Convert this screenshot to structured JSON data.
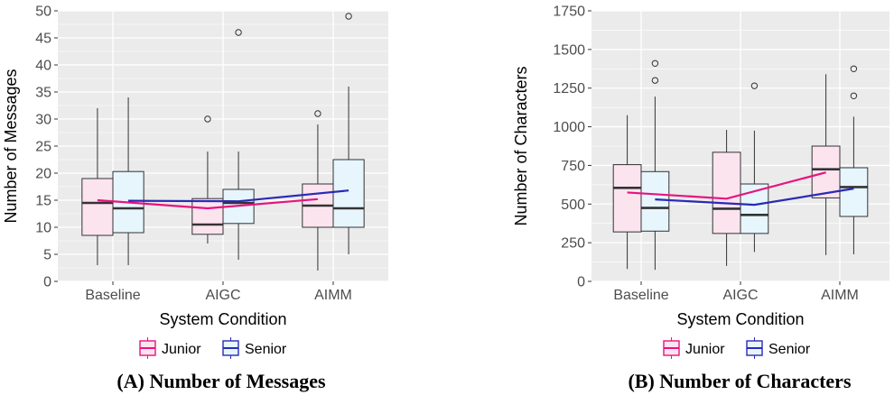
{
  "colors": {
    "junior_fill": "#fce4ef",
    "senior_fill": "#e6f6fc",
    "junior_line": "#e8137f",
    "senior_line": "#2a2ab5",
    "panel_bg": "#ebebeb",
    "grid": "#ffffff",
    "box_stroke": "#333333"
  },
  "legend": {
    "junior_label": "Junior",
    "senior_label": "Senior"
  },
  "chart_data": [
    {
      "type": "box",
      "caption": "(A) Number of Messages",
      "xlabel": "System Condition",
      "ylabel": "Number of Messages",
      "ylim": [
        0,
        50
      ],
      "yticks": [
        0,
        5,
        10,
        15,
        20,
        25,
        30,
        35,
        40,
        45,
        50
      ],
      "grid": true,
      "legend_position": "bottom",
      "categories": [
        "Baseline",
        "AIGC",
        "AIMM"
      ],
      "series": [
        {
          "name": "Junior",
          "boxes": [
            {
              "whisker_low": 3,
              "q1": 8.5,
              "median": 14.5,
              "q3": 19,
              "whisker_high": 32,
              "outliers": []
            },
            {
              "whisker_low": 7,
              "q1": 8.7,
              "median": 10.5,
              "q3": 15.3,
              "whisker_high": 24,
              "outliers": [
                30
              ]
            },
            {
              "whisker_low": 2,
              "q1": 10,
              "median": 14,
              "q3": 18,
              "whisker_high": 29,
              "outliers": [
                31
              ]
            }
          ],
          "means": [
            15,
            13.5,
            15.2
          ]
        },
        {
          "name": "Senior",
          "boxes": [
            {
              "whisker_low": 3,
              "q1": 9,
              "median": 13.5,
              "q3": 20.3,
              "whisker_high": 34,
              "outliers": []
            },
            {
              "whisker_low": 4,
              "q1": 10.7,
              "median": 14.5,
              "q3": 17,
              "whisker_high": 24,
              "outliers": [
                46
              ]
            },
            {
              "whisker_low": 5,
              "q1": 10,
              "median": 13.5,
              "q3": 22.5,
              "whisker_high": 36,
              "outliers": [
                49
              ]
            }
          ],
          "means": [
            14.9,
            14.8,
            16.8
          ]
        }
      ]
    },
    {
      "type": "box",
      "caption": "(B) Number of Characters",
      "xlabel": "System Condition",
      "ylabel": "Number of Characters",
      "ylim": [
        0,
        1750
      ],
      "yticks": [
        0,
        250,
        500,
        750,
        1000,
        1250,
        1500,
        1750
      ],
      "grid": true,
      "legend_position": "bottom",
      "categories": [
        "Baseline",
        "AIGC",
        "AIMM"
      ],
      "series": [
        {
          "name": "Junior",
          "boxes": [
            {
              "whisker_low": 80,
              "q1": 320,
              "median": 605,
              "q3": 755,
              "whisker_high": 1075,
              "outliers": []
            },
            {
              "whisker_low": 100,
              "q1": 310,
              "median": 470,
              "q3": 835,
              "whisker_high": 980,
              "outliers": []
            },
            {
              "whisker_low": 170,
              "q1": 540,
              "median": 725,
              "q3": 875,
              "whisker_high": 1340,
              "outliers": []
            }
          ],
          "means": [
            575,
            535,
            705
          ]
        },
        {
          "name": "Senior",
          "boxes": [
            {
              "whisker_low": 75,
              "q1": 325,
              "median": 475,
              "q3": 710,
              "whisker_high": 1195,
              "outliers": [
                1300,
                1410
              ]
            },
            {
              "whisker_low": 190,
              "q1": 310,
              "median": 430,
              "q3": 630,
              "whisker_high": 975,
              "outliers": [
                1265
              ]
            },
            {
              "whisker_low": 175,
              "q1": 420,
              "median": 610,
              "q3": 735,
              "whisker_high": 1065,
              "outliers": [
                1200,
                1375
              ]
            }
          ],
          "means": [
            530,
            495,
            600
          ]
        }
      ]
    }
  ]
}
